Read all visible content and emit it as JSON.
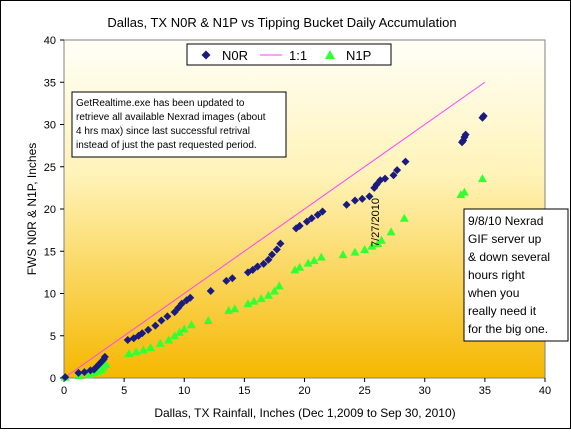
{
  "chart_data": {
    "type": "scatter",
    "title": "Dallas, TX N0R & N1P vs Tipping Bucket Daily Accumulation",
    "xlabel": "Dallas, TX Rainfall, Inches (Dec 1,2009 to Sep 30, 2010)",
    "ylabel": "FWS N0R & N1P, Inches",
    "xlim": [
      0,
      40
    ],
    "ylim": [
      0,
      40
    ],
    "x_ticks": [
      "0",
      "5",
      "10",
      "15",
      "20",
      "25",
      "30",
      "35",
      "40"
    ],
    "y_ticks": [
      "0",
      "5",
      "10",
      "15",
      "20",
      "25",
      "30",
      "35",
      "40"
    ],
    "grid": false,
    "legend_position": "top-center",
    "colors": {
      "n0r": "#1a1a80",
      "n1p": "#33ff33",
      "line": "#ff44ff",
      "bg_top": "#fffff8",
      "bg_bottom": "#f5b800"
    },
    "legend": {
      "n0r": "N0R",
      "line": "1:1",
      "n1p": "N1P"
    },
    "line_1to1": {
      "name": "1:1",
      "x": [
        0,
        35
      ],
      "y": [
        0,
        35
      ]
    },
    "series": [
      {
        "name": "N0R",
        "marker": "diamond",
        "points": [
          [
            0.1,
            0.1
          ],
          [
            1.2,
            0.6
          ],
          [
            1.7,
            0.7
          ],
          [
            2.2,
            0.9
          ],
          [
            2.5,
            1.0
          ],
          [
            2.7,
            1.3
          ],
          [
            2.9,
            1.6
          ],
          [
            3.1,
            1.9
          ],
          [
            3.3,
            2.2
          ],
          [
            3.4,
            2.5
          ],
          [
            5.3,
            4.5
          ],
          [
            5.8,
            4.7
          ],
          [
            6.2,
            5.0
          ],
          [
            6.5,
            5.3
          ],
          [
            7.0,
            5.7
          ],
          [
            7.6,
            6.2
          ],
          [
            8.1,
            6.8
          ],
          [
            8.6,
            7.3
          ],
          [
            9.2,
            7.8
          ],
          [
            9.5,
            8.3
          ],
          [
            9.8,
            8.8
          ],
          [
            10.2,
            9.2
          ],
          [
            10.5,
            9.5
          ],
          [
            12.2,
            10.3
          ],
          [
            13.5,
            11.5
          ],
          [
            14.0,
            11.8
          ],
          [
            15.3,
            12.5
          ],
          [
            15.7,
            12.8
          ],
          [
            16.1,
            13.2
          ],
          [
            16.6,
            13.5
          ],
          [
            17.0,
            14.0
          ],
          [
            17.3,
            14.6
          ],
          [
            17.7,
            15.2
          ],
          [
            18.0,
            15.9
          ],
          [
            19.3,
            17.7
          ],
          [
            19.6,
            18.0
          ],
          [
            20.2,
            18.5
          ],
          [
            20.6,
            18.9
          ],
          [
            21.1,
            19.3
          ],
          [
            21.5,
            19.7
          ],
          [
            23.5,
            20.5
          ],
          [
            24.2,
            21.0
          ],
          [
            24.8,
            21.2
          ],
          [
            25.4,
            21.5
          ],
          [
            25.8,
            22.5
          ],
          [
            26.0,
            22.9
          ],
          [
            26.3,
            23.4
          ],
          [
            26.7,
            23.6
          ],
          [
            27.4,
            24.0
          ],
          [
            27.7,
            24.6
          ],
          [
            28.4,
            25.6
          ],
          [
            33.1,
            27.9
          ],
          [
            33.2,
            28.1
          ],
          [
            33.3,
            28.5
          ],
          [
            33.4,
            28.8
          ],
          [
            34.8,
            30.8
          ],
          [
            34.9,
            31.0
          ]
        ]
      },
      {
        "name": "N1P",
        "marker": "triangle",
        "points": [
          [
            0.1,
            0.1
          ],
          [
            1.3,
            0.3
          ],
          [
            2.1,
            0.4
          ],
          [
            2.5,
            0.6
          ],
          [
            2.8,
            0.8
          ],
          [
            3.1,
            1.0
          ],
          [
            3.3,
            1.3
          ],
          [
            3.5,
            1.6
          ],
          [
            5.4,
            2.9
          ],
          [
            6.0,
            3.1
          ],
          [
            6.6,
            3.3
          ],
          [
            7.2,
            3.6
          ],
          [
            8.0,
            4.1
          ],
          [
            8.7,
            4.5
          ],
          [
            9.2,
            5.0
          ],
          [
            9.6,
            5.4
          ],
          [
            10.0,
            5.8
          ],
          [
            10.6,
            6.3
          ],
          [
            12.0,
            6.8
          ],
          [
            13.7,
            8.0
          ],
          [
            14.2,
            8.2
          ],
          [
            15.3,
            8.8
          ],
          [
            15.8,
            9.1
          ],
          [
            16.4,
            9.4
          ],
          [
            17.0,
            9.8
          ],
          [
            17.5,
            10.3
          ],
          [
            17.9,
            10.9
          ],
          [
            19.2,
            12.8
          ],
          [
            19.6,
            13.1
          ],
          [
            20.3,
            13.6
          ],
          [
            20.8,
            13.9
          ],
          [
            21.4,
            14.3
          ],
          [
            23.2,
            14.6
          ],
          [
            24.2,
            14.9
          ],
          [
            25.0,
            15.2
          ],
          [
            25.6,
            15.6
          ],
          [
            26.1,
            15.9
          ],
          [
            26.4,
            16.3
          ],
          [
            27.2,
            17.3
          ],
          [
            28.3,
            18.9
          ],
          [
            33.0,
            21.7
          ],
          [
            33.3,
            22.0
          ],
          [
            34.8,
            23.6
          ]
        ]
      }
    ],
    "annotations": {
      "box1": [
        "GetRealtime.exe has been updated to",
        "retrieve all available Nexrad images (about",
        "4 hrs max) since last successful retrival",
        "instead of just the past requested period."
      ],
      "box2": [
        "9/8/10 Nexrad",
        "GIF server  up",
        "& down several",
        "hours right",
        "when you",
        "really need it",
        "for the big one."
      ],
      "date_label": "7/27/2010"
    }
  }
}
